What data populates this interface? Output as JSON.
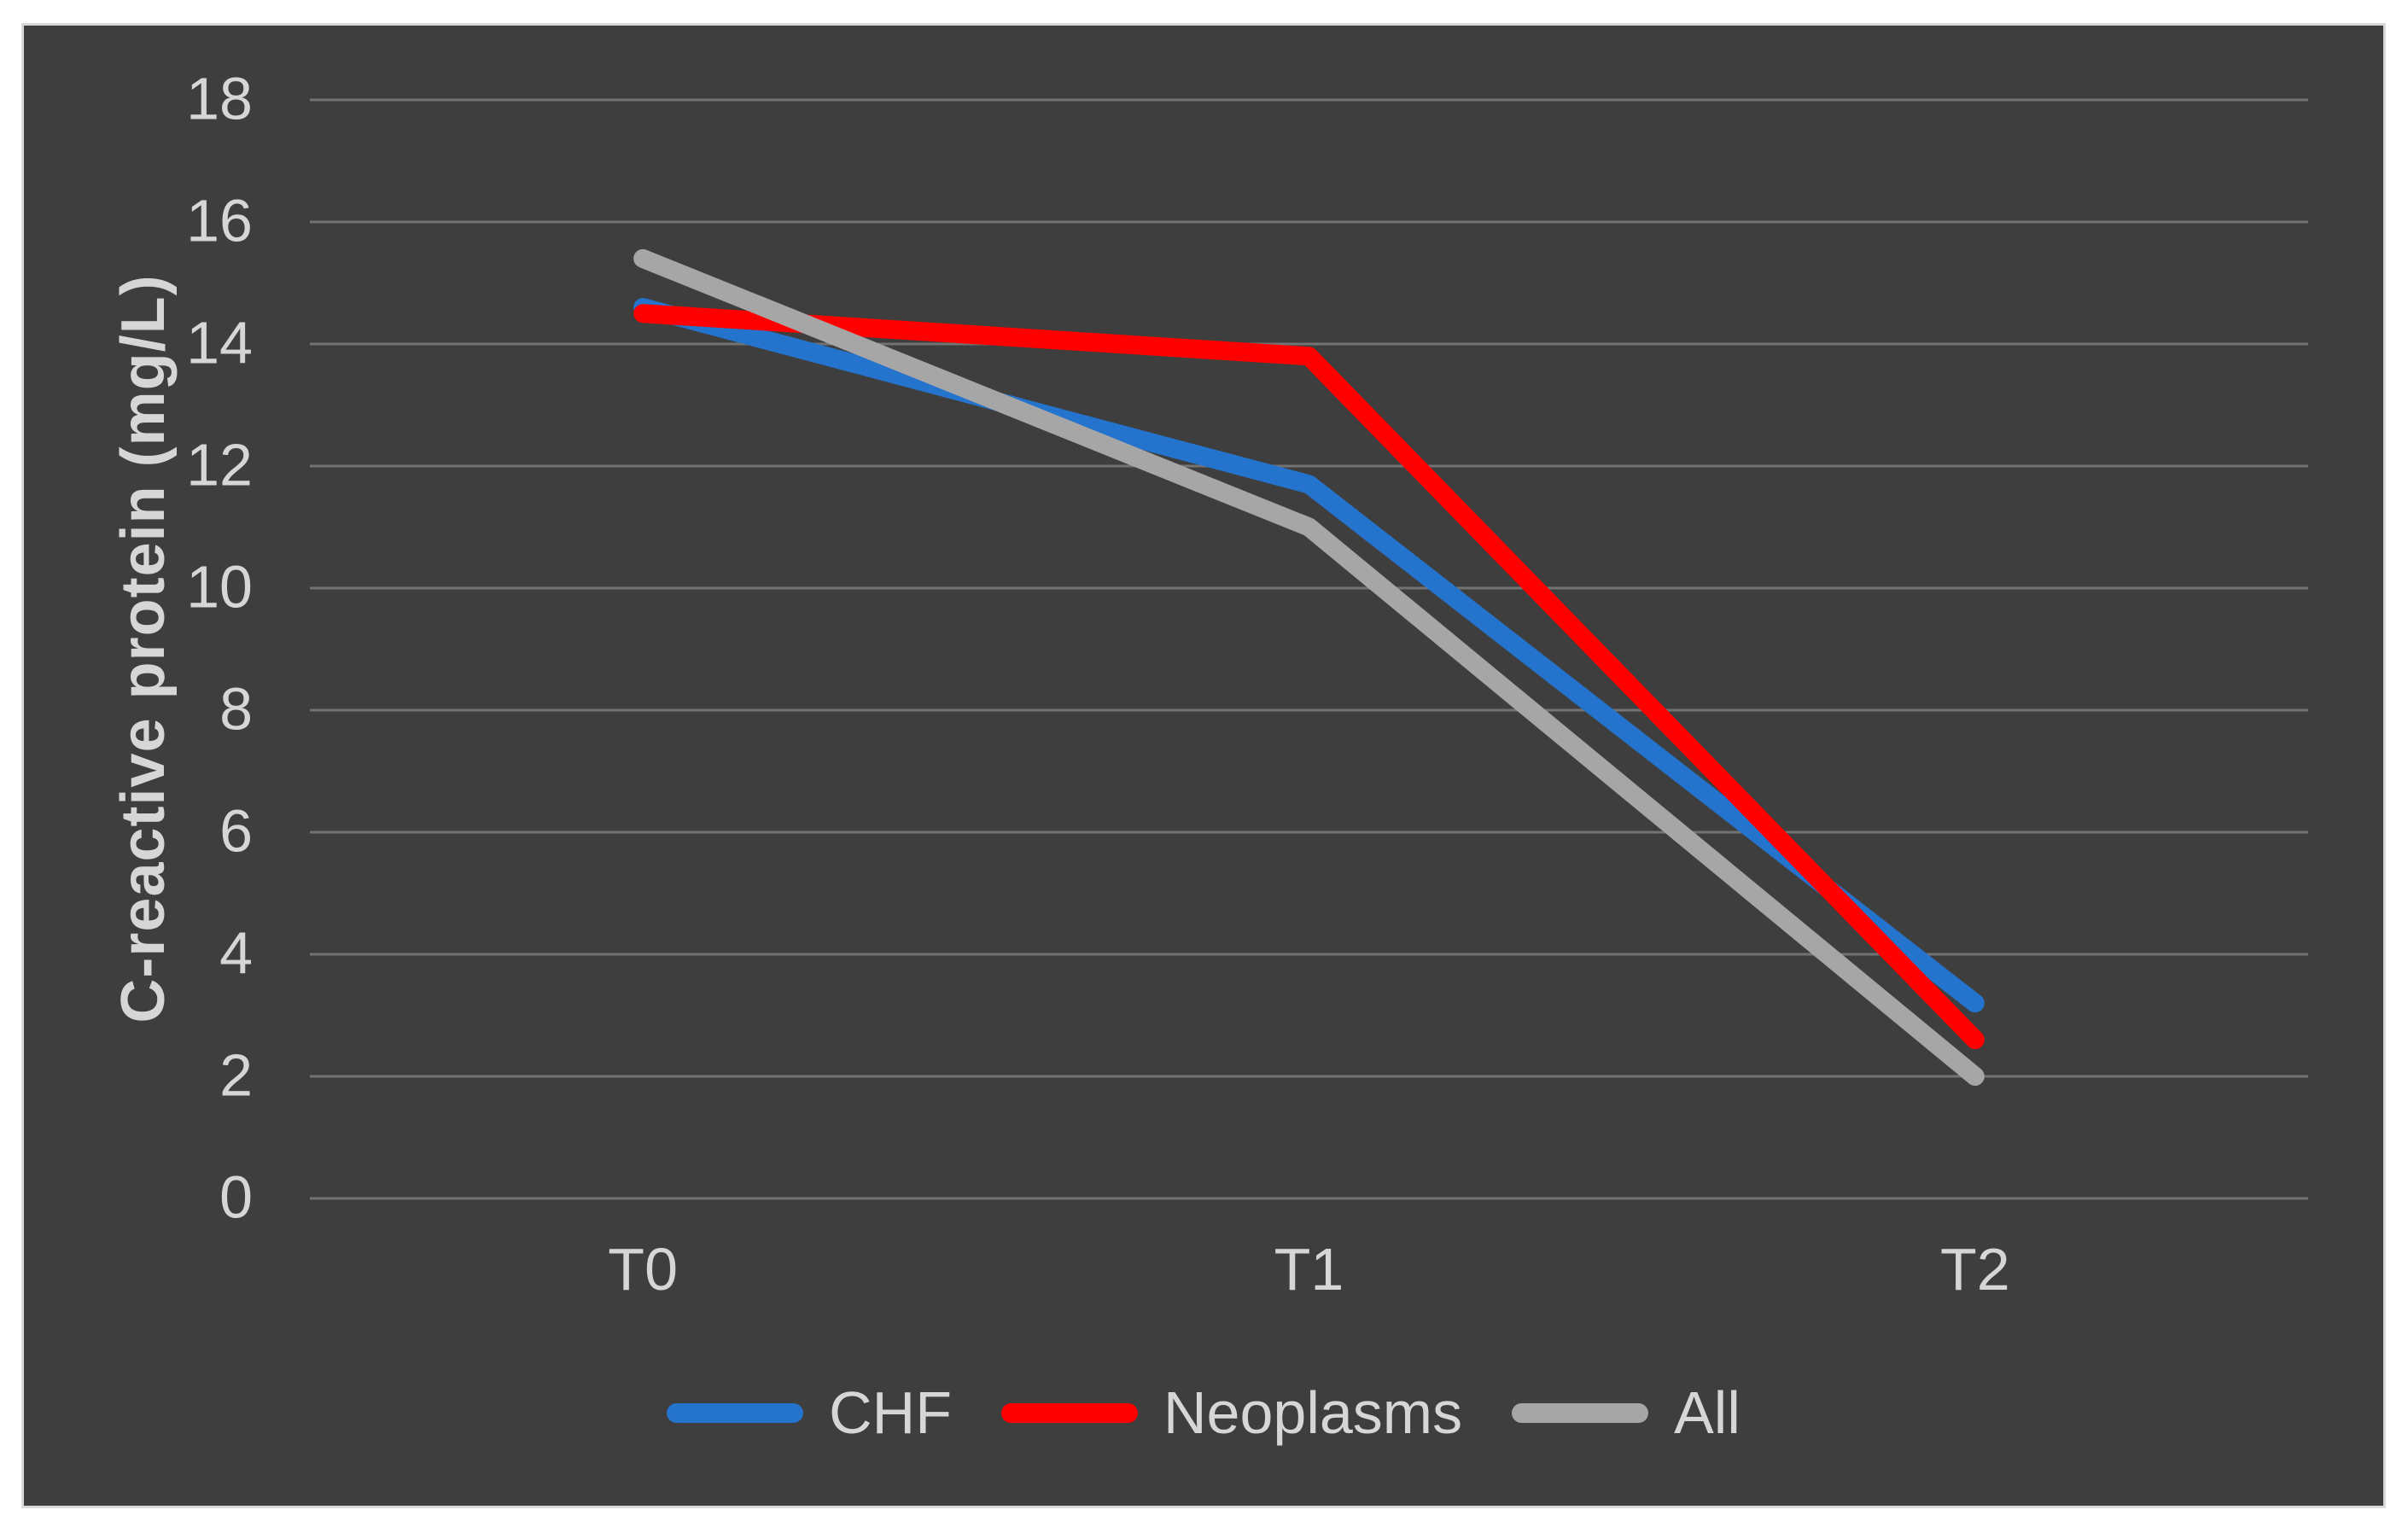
{
  "chart": {
    "page_background": "#FFFFFF",
    "background_color": "#3E3E3E",
    "border_color": "#D9D9D9",
    "text_color": "#D6D6D6",
    "gridline_color": "#737373"
  },
  "chart_data": {
    "type": "line",
    "title": "",
    "categories": [
      "T0",
      "T1",
      "T2"
    ],
    "series": [
      {
        "name": "CHF",
        "color": "#2473CC",
        "values": [
          14.6,
          11.7,
          3.2
        ]
      },
      {
        "name": "Neoplasms",
        "color": "#FE0000",
        "values": [
          14.5,
          13.8,
          2.6
        ]
      },
      {
        "name": "All",
        "color": "#A6A6A6",
        "values": [
          15.4,
          11.0,
          2.0
        ]
      }
    ],
    "xlabel": "",
    "ylabel": "C-reactive protein (mg/L)",
    "ylim": [
      0,
      18
    ],
    "yticks": [
      18,
      16,
      14,
      12,
      10,
      8,
      6,
      4,
      2,
      0
    ],
    "grid": true,
    "legend_position": "bottom"
  }
}
